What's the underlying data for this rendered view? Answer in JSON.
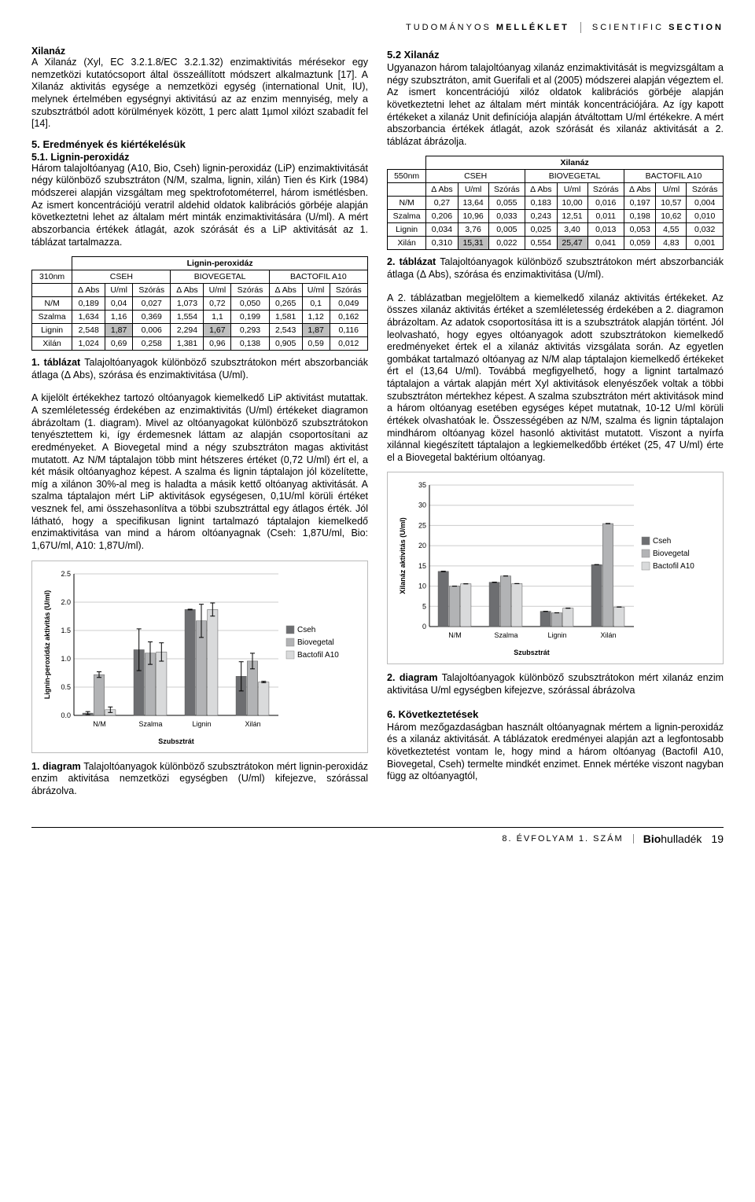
{
  "header": {
    "left_light": "TUDOMÁNYOS",
    "left_bold": "MELLÉKLET",
    "right_light": "SCIENTIFIC",
    "right_bold": "SECTION"
  },
  "left_col": {
    "xilanaz_title": "Xilanáz",
    "xilanaz_p": "A Xilanáz (Xyl, EC 3.2.1.8/EC 3.2.1.32) enzimaktivitás mérésekor egy nemzetközi kutatócsoport által összeállított módszert alkalmaztunk [17]. A Xilanáz aktivitás egysége a nemzetközi egység (international Unit, IU), melynek értelmében egységnyi aktivitású az az enzim mennyiség, mely a szubsztrátból adott körülmények között, 1 perc alatt 1µmol xilózt szabadít fel [14].",
    "sec5_title": "5. Eredmények és kiértékelésük",
    "sec51_title": "5.1. Lignin-peroxidáz",
    "sec51_p": "Három talajoltóanyag (A10, Bio, Cseh) lignin-peroxidáz (LiP) enzimaktivitását négy különböző szubsztráton (N/M, szalma, lignin, xilán) Tien és Kirk (1984) módszerei alapján vizsgáltam meg spektrofotométerrel, három ismétlésben. Az ismert koncentrációjú veratril aldehid oldatok kalibrációs görbéje alapján következtetni lehet az általam mért minták enzimaktivitására (U/ml). A mért abszorbancia értékek átlagát, azok szórását és a LiP aktivitását az 1. táblázat tartalmazza.",
    "tbl1_caption_b": "1. táblázat",
    "tbl1_caption": " Talajoltóanyagok különböző szubsztrátokon mért abszorbanciák átlaga (Δ Abs), szórása és enzimaktivitása (U/ml).",
    "after_tbl1": "A kijelölt értékekhez tartozó oltóanyagok kiemelkedő LiP aktivitást mutattak. A szemléletesség érdekében az enzimaktivitás (U/ml) értékeket diagramon ábrázoltam (1. diagram). Mivel az oltóanyagokat különböző szubsztrátokon tenyésztettem ki, így érdemesnek láttam az alapján csoportosítani az eredményeket. A Biovegetal mind a négy szubsztráton magas aktivitást mutatott. Az N/M táptalajon több mint hétszeres értéket (0,72 U/ml) ért el, a két másik oltóanyaghoz képest. A szalma és lignin táptalajon jól közelítette, míg a xilánon 30%-al meg is haladta a másik kettő oltóanyag aktivitását. A szalma táptalajon mért LiP aktivitások egységesen, 0,1U/ml körüli értéket vesznek fel, ami összehasonlítva a többi szubsztráttal egy átlagos érték. Jól látható, hogy a specifikusan lignint tartalmazó táptalajon kiemelkedő enzimaktivitása van mind a három oltóanyagnak (Cseh: 1,87U/ml, Bio: 1,67U/ml, A10: 1,87U/ml).",
    "fig1_caption_b": "1. diagram",
    "fig1_caption": " Talajoltóanyagok különböző szubsztrátokon mért lignin-peroxidáz enzim  aktivitása nemzetközi egységben (U/ml) kifejezve, szórással ábrázolva."
  },
  "right_col": {
    "sec52_title": "5.2 Xilanáz",
    "sec52_p": "Ugyanazon három talajoltóanyag xilanáz enzimaktivitását is megvizsgáltam a négy szubsztráton, amit Guerifali et al (2005) módszerei alapján végeztem el. Az ismert koncentrációjú xilóz oldatok kalibrációs görbéje alapján következtetni lehet az általam mért minták koncentrációjára. Az így kapott értékeket a xilanáz Unit definíciója alapján átváltottam U/ml értékekre. A mért abszorbancia értékek átlagát, azok szórását és xilanáz aktivitását a 2. táblázat ábrázolja.",
    "tbl2_caption_b": "2. táblázat",
    "tbl2_caption": " Talajoltóanyagok különböző szubsztrátokon mért abszorbanciák átlaga (Δ Abs), szórása és enzimaktivitása (U/ml).",
    "after_tbl2": "A 2. táblázatban megjelöltem a kiemelkedő xilanáz aktivitás értékeket. Az összes xilanáz aktivitás értéket a szemléletesség érdekében a 2. diagramon ábrázoltam. Az adatok csoportosítása itt is a szubsztrátok alapján történt. Jól leolvasható, hogy egyes oltóanyagok adott szubsztrátokon kiemelkedő eredményeket értek el a xilanáz aktivitás vizsgálata során. Az egyetlen gombákat tartalmazó oltóanyag az N/M alap táptalajon kiemelkedő értékeket ért el (13,64 U/ml). Továbbá megfigyelhető, hogy a lignint tartalmazó táptalajon a vártak alapján mért Xyl aktivitások elenyészőek voltak a többi szubsztráton mértekhez képest. A szalma szubsztráton mért aktivitások mind a három oltóanyag esetében egységes képet mutatnak, 10-12 U/ml körüli értékek olvashatóak le. Összességében az N/M, szalma és lignin táptalajon mindhárom oltóanyag közel hasonló aktivitást mutatott. Viszont a nyírfa xilánnal kiegészített táptalajon a legkiemelkedőbb értéket (25, 47 U/ml) érte el a Biovegetal baktérium oltóanyag.",
    "fig2_caption_b": "2. diagram",
    "fig2_caption": " Talajoltóanyagok különböző szubsztrátokon mért xilanáz enzim aktivitása U/ml egységben kifejezve, szórással ábrázolva",
    "sec6_title": "6. Következtetések",
    "sec6_p": "Három mezőgazdaságban használt oltóanyagnak mértem a lignin-peroxidáz és a xilanáz aktivitását. A táblázatok eredményei alapján azt a legfontosabb következtetést vontam le, hogy mind a három oltóanyag (Bactofil A10, Biovegetal, Cseh) termelte mindkét enzimet. Ennek mértéke viszont nagyban függ az oltóanyagtól,"
  },
  "table1": {
    "title": "Lignin-peroxidáz",
    "row_header": "310nm",
    "group_labels": [
      "CSEH",
      "BIOVEGETAL",
      "BACTOFIL A10"
    ],
    "sub_headers": [
      "Δ Abs",
      "U/ml",
      "Szórás"
    ],
    "rows": [
      {
        "label": "N/M",
        "vals": [
          "0,189",
          "0,04",
          "0,027",
          "1,073",
          "0,72",
          "0,050",
          "0,265",
          "0,1",
          "0,049"
        ]
      },
      {
        "label": "Szalma",
        "vals": [
          "1,634",
          "1,16",
          "0,369",
          "1,554",
          "1,1",
          "0,199",
          "1,581",
          "1,12",
          "0,162"
        ]
      },
      {
        "label": "Lignin",
        "vals": [
          "2,548",
          "1,87",
          "0,006",
          "2,294",
          "1,67",
          "0,293",
          "2,543",
          "1,87",
          "0,116"
        ],
        "hl": [
          1,
          4,
          7
        ]
      },
      {
        "label": "Xilán",
        "vals": [
          "1,024",
          "0,69",
          "0,258",
          "1,381",
          "0,96",
          "0,138",
          "0,905",
          "0,59",
          "0,012"
        ]
      }
    ]
  },
  "table2": {
    "title": "Xilanáz",
    "row_header": "550nm",
    "group_labels": [
      "CSEH",
      "BIOVEGETAL",
      "BACTOFIL A10"
    ],
    "sub_headers": [
      "Δ Abs",
      "U/ml",
      "Szórás"
    ],
    "rows": [
      {
        "label": "N/M",
        "vals": [
          "0,27",
          "13,64",
          "0,055",
          "0,183",
          "10,00",
          "0,016",
          "0,197",
          "10,57",
          "0,004"
        ]
      },
      {
        "label": "Szalma",
        "vals": [
          "0,206",
          "10,96",
          "0,033",
          "0,243",
          "12,51",
          "0,011",
          "0,198",
          "10,62",
          "0,010"
        ]
      },
      {
        "label": "Lignin",
        "vals": [
          "0,034",
          "3,76",
          "0,005",
          "0,025",
          "3,40",
          "0,013",
          "0,053",
          "4,55",
          "0,032"
        ]
      },
      {
        "label": "Xilán",
        "vals": [
          "0,310",
          "15,31",
          "0,022",
          "0,554",
          "25,47",
          "0,041",
          "0,059",
          "4,83",
          "0,001"
        ],
        "hl": [
          1,
          4
        ]
      }
    ]
  },
  "chart1": {
    "type": "bar",
    "y_label": "Lignin-peroxidáz aktivitás (U/ml)",
    "x_label": "Szubsztrát",
    "categories": [
      "N/M",
      "Szalma",
      "Lignin",
      "Xilán"
    ],
    "series": [
      {
        "name": "Cseh",
        "color": "#6d6e71",
        "values": [
          0.04,
          1.16,
          1.87,
          0.69
        ],
        "err": [
          0.027,
          0.369,
          0.006,
          0.258
        ]
      },
      {
        "name": "Biovegetal",
        "color": "#b2b3b5",
        "values": [
          0.72,
          1.1,
          1.67,
          0.96
        ],
        "err": [
          0.05,
          0.199,
          0.293,
          0.138
        ]
      },
      {
        "name": "Bactofil A10",
        "color": "#d9dadb",
        "values": [
          0.1,
          1.12,
          1.87,
          0.59
        ],
        "err": [
          0.049,
          0.162,
          0.116,
          0.012
        ]
      }
    ],
    "ylim": [
      0,
      2.5
    ],
    "ytick_step": 0.5,
    "background": "#ffffff",
    "grid_color": "#cccccc",
    "bar_width": 0.22
  },
  "chart2": {
    "type": "bar",
    "y_label": "Xilanáz aktivitás (U/ml)",
    "x_label": "Szubsztrát",
    "categories": [
      "N/M",
      "Szalma",
      "Lignin",
      "Xilán"
    ],
    "series": [
      {
        "name": "Cseh",
        "color": "#6d6e71",
        "values": [
          13.64,
          10.96,
          3.76,
          15.31
        ],
        "err": [
          0.055,
          0.033,
          0.005,
          0.022
        ]
      },
      {
        "name": "Biovegetal",
        "color": "#b2b3b5",
        "values": [
          10.0,
          12.51,
          3.4,
          25.47
        ],
        "err": [
          0.016,
          0.011,
          0.013,
          0.041
        ]
      },
      {
        "name": "Bactofil A10",
        "color": "#d9dadb",
        "values": [
          10.57,
          10.62,
          4.55,
          4.83
        ],
        "err": [
          0.004,
          0.01,
          0.032,
          0.001
        ]
      }
    ],
    "ylim": [
      0,
      35
    ],
    "ytick_step": 5,
    "background": "#ffffff",
    "grid_color": "#cccccc",
    "bar_width": 0.22
  },
  "footer": {
    "issue": "8. ÉVFOLYAM 1. SZÁM",
    "brand_bold": "Bio",
    "brand_light": "hulladék",
    "page": "19"
  }
}
